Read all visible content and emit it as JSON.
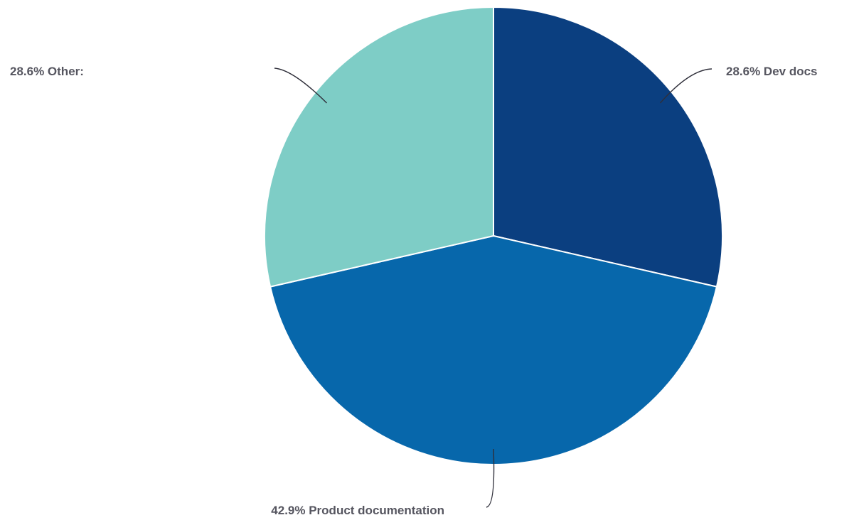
{
  "chart_data": {
    "type": "pie",
    "slices": [
      {
        "label": "Dev docs",
        "value": 28.6,
        "display": "28.6% Dev docs",
        "color": "#0b3f80"
      },
      {
        "label": "Product documentation",
        "value": 42.9,
        "display": "42.9% Product documentation",
        "color": "#0767ab"
      },
      {
        "label": "Other:",
        "value": 28.6,
        "display": "28.6% Other:",
        "color": "#7ecdc6"
      }
    ],
    "start_angle": "12 o'clock",
    "direction": "clockwise",
    "legend": "none",
    "label_style": "outside with leader lines"
  }
}
